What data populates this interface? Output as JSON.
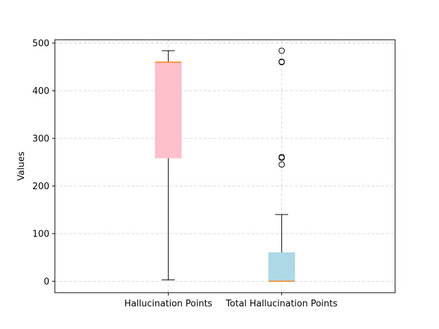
{
  "chart_data": {
    "type": "box",
    "ylabel": "Values",
    "ylim": [
      -24,
      507
    ],
    "yticks": [
      0,
      100,
      200,
      300,
      400,
      500
    ],
    "grid": true,
    "grid_style": "dashed",
    "boxes": [
      {
        "category": "Hallucination Points",
        "color": "#ffc0cb",
        "whisker_low": 3,
        "q1": 259,
        "median": 460,
        "q3": 460,
        "whisker_high": 484,
        "outliers": []
      },
      {
        "category": "Total Hallucination Points",
        "color": "#add8e6",
        "whisker_low": 0,
        "q1": 0,
        "median": 0,
        "q3": 60,
        "whisker_high": 140,
        "outliers": [
          245,
          259,
          261,
          460,
          461,
          484
        ]
      }
    ],
    "median_color": "#ff7f0e"
  }
}
